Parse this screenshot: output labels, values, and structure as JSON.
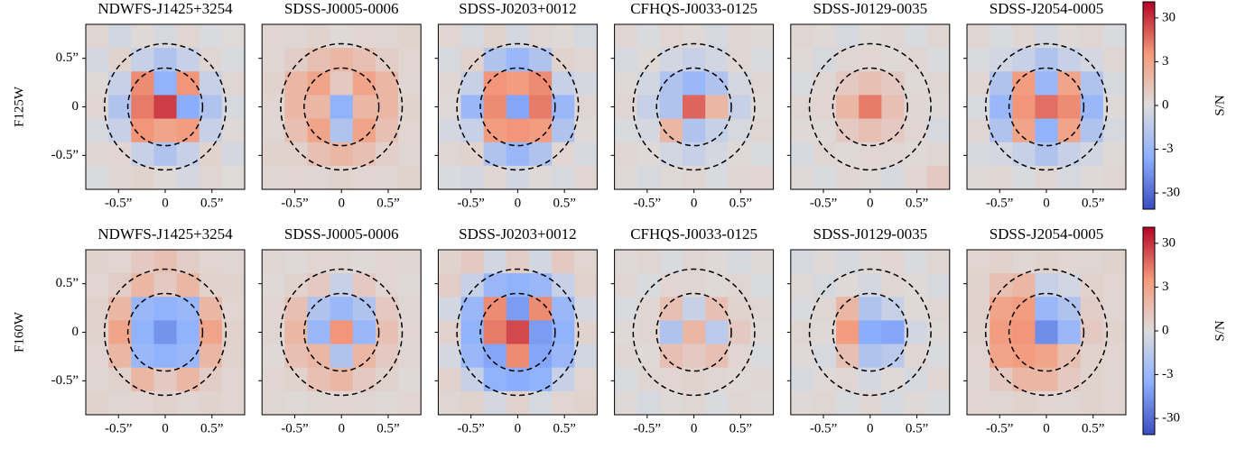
{
  "chart_data": {
    "type": "heatmap",
    "cmap": "coolwarm",
    "color_scale": "symlog",
    "linthresh": 3,
    "clim": [
      -70,
      70
    ],
    "colorbar_label": "S/N",
    "colorbar_ticks": [
      30,
      3,
      0,
      -3,
      -30
    ],
    "xlim": [
      -0.85,
      0.85
    ],
    "ylim": [
      -0.85,
      0.85
    ],
    "xticks": [
      {
        "value": -0.5,
        "label": "-0.5”"
      },
      0,
      {
        "value": 0.5,
        "label": "0.5”"
      }
    ],
    "yticks": [
      {
        "value": 0.5,
        "label": "0.5”"
      },
      0,
      {
        "value": -0.5,
        "label": "-0.5”"
      }
    ],
    "circle_radii": [
      0.4,
      0.65
    ],
    "rows": [
      {
        "ylabel": "F125W",
        "panels": [
          {
            "title": "NDWFS-J1425+3254",
            "values": [
              [
                0.3,
                -0.5,
                0.2,
                -0.3,
                0.4,
                -0.2,
                0.1
              ],
              [
                -0.4,
                0.5,
                -1,
                -2,
                -1,
                0.3,
                -0.2
              ],
              [
                0.2,
                -1,
                6,
                -4,
                5,
                -1,
                0.3
              ],
              [
                0.4,
                -2,
                8,
                25,
                -5,
                -2,
                -0.3
              ],
              [
                -0.3,
                -1,
                5,
                3,
                4,
                -1,
                0.2
              ],
              [
                0.3,
                0.4,
                -1,
                -2,
                -1,
                0.5,
                -0.4
              ],
              [
                -0.2,
                0.3,
                0.5,
                0.2,
                -0.4,
                0.3,
                0.1
              ]
            ]
          },
          {
            "title": "SDSS-J0005-0006",
            "values": [
              [
                0.4,
                0.3,
                0.5,
                0.2,
                0.4,
                0.3,
                0.5
              ],
              [
                0.3,
                0.8,
                1.5,
                2,
                1.5,
                0.8,
                0.4
              ],
              [
                0.5,
                2,
                3,
                1,
                3,
                2,
                0.3
              ],
              [
                0.4,
                2,
                2,
                -4,
                2,
                2,
                0.5
              ],
              [
                0.3,
                1.5,
                3,
                -2,
                3,
                1.5,
                0.4
              ],
              [
                0.5,
                0.6,
                1.5,
                2,
                1.5,
                0.7,
                0.3
              ],
              [
                0.3,
                0.4,
                0.3,
                0.5,
                0.4,
                0.3,
                0.5
              ]
            ]
          },
          {
            "title": "SDSS-J0203+0012",
            "values": [
              [
                0.4,
                -0.3,
                0.5,
                -0.4,
                0.3,
                0.2,
                -0.3
              ],
              [
                -0.3,
                0.6,
                -2,
                -3,
                -2,
                0.5,
                0.3
              ],
              [
                0.3,
                -1,
                5,
                4,
                6,
                -1,
                -0.4
              ],
              [
                0.2,
                -3,
                6,
                -6,
                8,
                -3,
                0.3
              ],
              [
                -0.4,
                -1,
                4,
                5,
                4,
                -2,
                0.2
              ],
              [
                0.3,
                0.5,
                -2,
                -3,
                -2,
                0.4,
                -0.3
              ],
              [
                -0.2,
                -0.4,
                0.3,
                -0.5,
                0.2,
                -0.3,
                0.4
              ]
            ]
          },
          {
            "title": "CFHQS-J0033-0125",
            "values": [
              [
                0.3,
                -0.2,
                0.4,
                0.2,
                -0.3,
                0.3,
                0.2
              ],
              [
                -0.3,
                0.2,
                -0.5,
                -1,
                -0.5,
                0.3,
                -0.2
              ],
              [
                0.2,
                -0.5,
                -2,
                -3,
                -2,
                -0.4,
                0.3
              ],
              [
                0.3,
                -1,
                -2,
                12,
                2,
                -1,
                0.2
              ],
              [
                -0.2,
                -0.4,
                2,
                -2,
                -1,
                -0.3,
                0.3
              ],
              [
                0.3,
                0.2,
                -0.5,
                -1,
                -0.4,
                0.2,
                -0.2
              ],
              [
                0.2,
                -0.3,
                0.2,
                0.3,
                -0.2,
                0.3,
                0.4
              ]
            ]
          },
          {
            "title": "SDSS-J0129-0035",
            "values": [
              [
                0.3,
                0.2,
                -0.3,
                0.2,
                0.3,
                -0.2,
                0.3
              ],
              [
                0.2,
                -0.3,
                0.3,
                0.4,
                0.2,
                0.3,
                -0.2
              ],
              [
                -0.2,
                0.3,
                1,
                1.5,
                1,
                0.2,
                0.3
              ],
              [
                0.3,
                0.4,
                2,
                8,
                1.5,
                0.3,
                0.2
              ],
              [
                0.2,
                0.2,
                1,
                1.5,
                1,
                0.4,
                -0.3
              ],
              [
                -0.3,
                0.3,
                0.2,
                0.4,
                0.3,
                0.2,
                0.3
              ],
              [
                0.2,
                -0.2,
                0.3,
                0.2,
                -0.3,
                0.4,
                1
              ]
            ]
          },
          {
            "title": "SDSS-J2054-0005",
            "values": [
              [
                0.3,
                -0.2,
                0.3,
                -0.4,
                0.2,
                0.3,
                -0.2
              ],
              [
                -0.2,
                -0.5,
                -1,
                -2,
                -1,
                -0.4,
                0.3
              ],
              [
                0.3,
                -2,
                4,
                -3,
                3,
                -2,
                -0.3
              ],
              [
                -0.2,
                -3,
                5,
                10,
                6,
                -3,
                0.2
              ],
              [
                0.3,
                -2,
                3,
                -4,
                3,
                -2,
                -0.3
              ],
              [
                -0.3,
                -0.4,
                -1,
                -2,
                -1,
                -0.5,
                0.2
              ],
              [
                0.2,
                0.3,
                -0.2,
                0.3,
                -0.3,
                0.2,
                0.3
              ]
            ]
          }
        ]
      },
      {
        "ylabel": "F160W",
        "panels": [
          {
            "title": "NDWFS-J1425+3254",
            "values": [
              [
                0.5,
                0.4,
                1,
                1.5,
                0.8,
                0.4,
                0.3
              ],
              [
                0.4,
                0.8,
                2,
                1,
                2,
                0.6,
                0.5
              ],
              [
                0.6,
                2,
                -3,
                -4,
                -3,
                2,
                0.4
              ],
              [
                0.5,
                3,
                -4,
                -10,
                -4,
                3,
                0.6
              ],
              [
                0.4,
                2,
                -3,
                -4,
                -3,
                2,
                0.5
              ],
              [
                0.3,
                0.6,
                2,
                1,
                2,
                0.8,
                0.4
              ],
              [
                0.5,
                0.3,
                0.4,
                0.6,
                0.3,
                0.5,
                0.4
              ]
            ]
          },
          {
            "title": "SDSS-J0005-0006",
            "values": [
              [
                0.3,
                0.2,
                0.4,
                0.3,
                0.2,
                0.4,
                0.3
              ],
              [
                0.2,
                0.5,
                1,
                -1,
                1,
                0.4,
                0.2
              ],
              [
                0.4,
                1.5,
                -2,
                -3,
                -2,
                1,
                0.3
              ],
              [
                0.3,
                2,
                -3,
                5,
                -3,
                1.5,
                0.4
              ],
              [
                0.2,
                1.5,
                2,
                -2,
                2,
                1,
                0.3
              ],
              [
                0.4,
                0.5,
                1.5,
                2,
                1,
                0.5,
                0.2
              ],
              [
                0.3,
                0.2,
                0.3,
                0.4,
                0.3,
                0.2,
                0.4
              ]
            ]
          },
          {
            "title": "SDSS-J0203+0012",
            "values": [
              [
                0.5,
                1,
                -0.5,
                0.8,
                -0.5,
                1,
                0.4
              ],
              [
                0.8,
                -1,
                -3,
                -4,
                -3,
                -1,
                0.6
              ],
              [
                -0.5,
                -3,
                6,
                -8,
                6,
                -3,
                -0.4
              ],
              [
                0.6,
                -4,
                8,
                20,
                -8,
                -4,
                0.5
              ],
              [
                -0.4,
                -3,
                -6,
                6,
                -6,
                -3,
                -0.5
              ],
              [
                0.6,
                -1,
                -4,
                -5,
                -4,
                -1,
                0.4
              ],
              [
                0.3,
                0.5,
                -0.4,
                0.6,
                -0.3,
                0.4,
                0.5
              ]
            ]
          },
          {
            "title": "CFHQS-J0033-0125",
            "values": [
              [
                0.2,
                0.3,
                -0.2,
                0.3,
                0.2,
                -0.3,
                0.2
              ],
              [
                0.3,
                -0.2,
                0.4,
                0.3,
                0.2,
                0.3,
                -0.2
              ],
              [
                -0.2,
                0.3,
                1.5,
                -1,
                1.5,
                0.5,
                0.3
              ],
              [
                0.2,
                0.4,
                -2,
                2,
                -1.5,
                1,
                0.2
              ],
              [
                0.3,
                0.2,
                1.5,
                1,
                1.5,
                0.4,
                -0.2
              ],
              [
                -0.2,
                0.3,
                0.4,
                0.5,
                0.3,
                0.2,
                0.3
              ],
              [
                0.2,
                -0.3,
                0.2,
                0.3,
                -0.2,
                0.3,
                0.2
              ]
            ]
          },
          {
            "title": "SDSS-J0129-0035",
            "values": [
              [
                -0.3,
                0.2,
                -0.3,
                0.2,
                0.4,
                -0.2,
                0.3
              ],
              [
                0.2,
                -0.3,
                0.2,
                -0.4,
                0.3,
                0.2,
                -0.3
              ],
              [
                -0.2,
                0.3,
                2,
                -2,
                -1,
                0.2,
                0.3
              ],
              [
                0.3,
                0.2,
                4,
                -5,
                -6,
                -0.5,
                0.2
              ],
              [
                0.2,
                -0.3,
                1.5,
                -2,
                -1.5,
                0.3,
                -0.2
              ],
              [
                -0.3,
                0.2,
                0.3,
                -0.4,
                0.2,
                -0.3,
                0.3
              ],
              [
                0.2,
                0.3,
                -0.2,
                0.3,
                -0.3,
                0.2,
                -0.2
              ]
            ]
          },
          {
            "title": "SDSS-J2054-0005",
            "values": [
              [
                0.4,
                0.6,
                0.3,
                0.5,
                0.4,
                0.3,
                0.5
              ],
              [
                0.5,
                1.5,
                2,
                -1,
                -0.5,
                0.6,
                0.4
              ],
              [
                0.6,
                3,
                4,
                -3,
                -2,
                0.8,
                0.3
              ],
              [
                0.5,
                4,
                5,
                -12,
                -3,
                1,
                0.5
              ],
              [
                0.4,
                3,
                4,
                3,
                1.5,
                0.6,
                0.4
              ],
              [
                0.3,
                1,
                2,
                2,
                1,
                0.5,
                0.3
              ],
              [
                0.4,
                0.3,
                0.5,
                0.4,
                0.3,
                0.5,
                0.4
              ]
            ]
          }
        ]
      }
    ]
  }
}
